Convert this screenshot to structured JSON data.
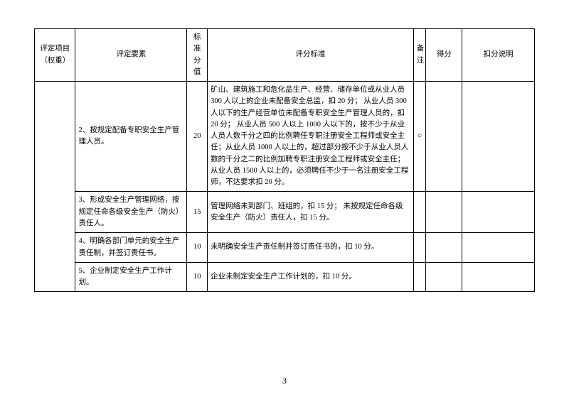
{
  "header": {
    "project": "评定项目（权重）",
    "element": "评定要素",
    "standardScore": "标准分值",
    "criteria": "评分标准",
    "remark": "备注",
    "gotScore": "得分",
    "explain": "扣分说明"
  },
  "rows": [
    {
      "element": "2、按规定配备专职安全生产管理人员。",
      "standardScore": "20",
      "criteria": "矿山、建筑施工和危化品生产、经营、储存单位或从业人员 300 人以上的企业未配备安全总监，扣 20 分；\n从业人员 300 人以下的生产经营单位未配备专职安全生产管理人员的，扣 20 分；\n从业人员 500 人以上 1000 人以下的，按不少于从业人员人数千分之四的比例聘任专职注册安全工程师或安全主任；从业人员 1000 人以上的，超过部分按不少于从业人员人数的千分之二的比例加聘专职注册安全工程师或安全主任；从业人员 1500 人以上的，必须聘任不少于一名注册安全工程师，不达要求扣 20 分。",
      "remark": "○"
    },
    {
      "element": "3、形成安全生产管理网络，按规定任命各级安全生产（防火）责任人。",
      "standardScore": "15",
      "criteria": "管理网络未到部门、班组的，扣 15 分；\n未按规定任命各级安全生产（防火）责任人，扣 15 分。",
      "remark": ""
    },
    {
      "element": "4、明确各部门单元的安全生产责任制，并签订责任书。",
      "standardScore": "10",
      "criteria": "未明确安全生产责任制并签订责任书的，扣 10 分。",
      "remark": ""
    },
    {
      "element": "5、企业制定安全生产工作计划。",
      "standardScore": "10",
      "criteria": "企业未制定安全生产工作计划的，扣 10 分。",
      "remark": ""
    }
  ],
  "pageNumber": "3"
}
